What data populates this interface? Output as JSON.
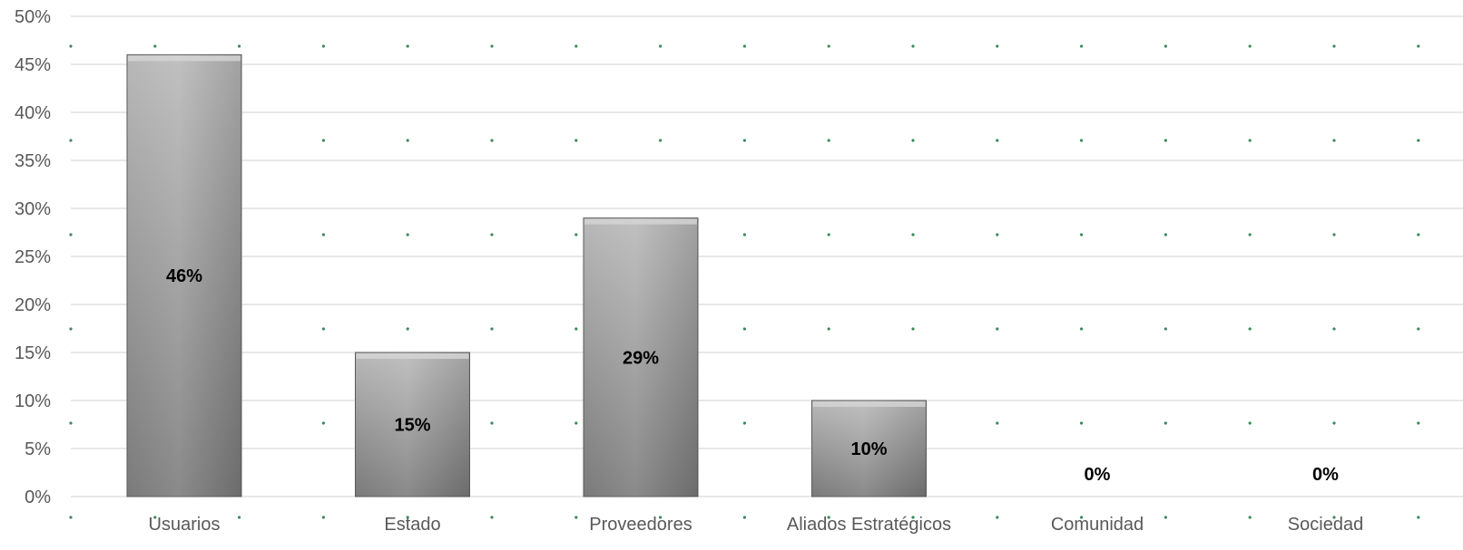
{
  "chart_data": {
    "type": "bar",
    "title": "",
    "xlabel": "",
    "ylabel": "",
    "categories": [
      "Usuarios",
      "Estado",
      "Proveedores",
      "Aliados Estratégicos",
      "Comunidad",
      "Sociedad"
    ],
    "values": [
      46,
      15,
      29,
      10,
      0,
      0
    ],
    "data_labels": [
      "46%",
      "15%",
      "29%",
      "10%",
      "0%",
      "0%"
    ],
    "ylim": [
      0,
      50
    ],
    "y_ticks": [
      "0%",
      "5%",
      "10%",
      "15%",
      "20%",
      "25%",
      "30%",
      "35%",
      "40%",
      "45%",
      "50%"
    ],
    "grid": true,
    "legend": "none",
    "colors": {
      "bar_top": "#b8b8b8",
      "bar_bottom": "#7a7a7a",
      "bar_edge": "#5a5a5a",
      "grid": "#d9d9d9",
      "pattern_dot": "#3a8a5a",
      "tick_text": "#595959",
      "data_label_text": "#000000"
    }
  }
}
